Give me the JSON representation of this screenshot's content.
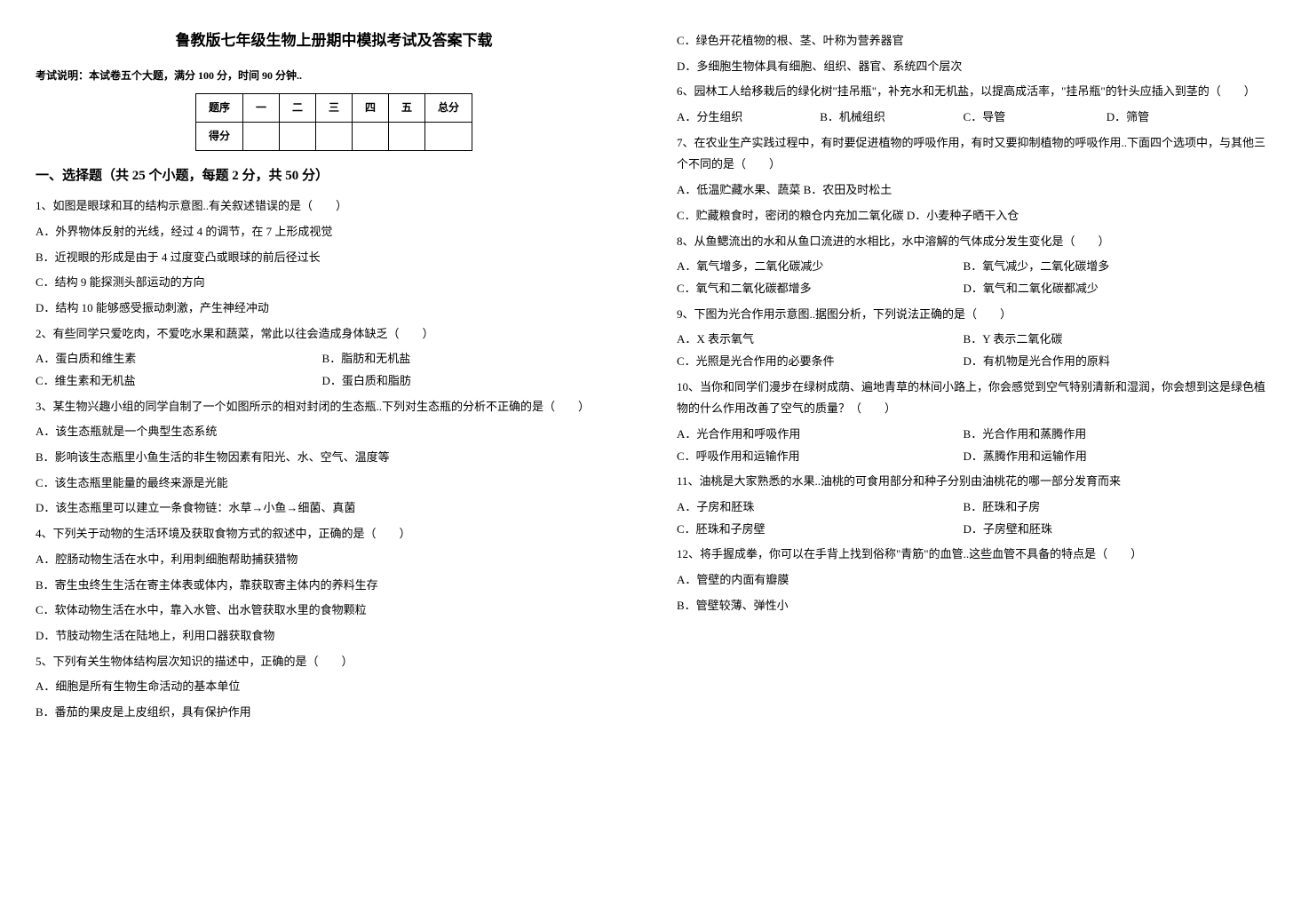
{
  "title": "鲁教版七年级生物上册期中模拟考试及答案下载",
  "exam_note": "考试说明：本试卷五个大题，满分 100 分，时间 90 分钟..",
  "score_table": {
    "headers": [
      "题序",
      "一",
      "二",
      "三",
      "四",
      "五",
      "总分"
    ],
    "row_label": "得分"
  },
  "section1_heading": "一、选择题（共 25 个小题，每题 2 分，共 50 分）",
  "left": {
    "q1": "1、如图是眼球和耳的结构示意图..有关叙述错误的是（　　）",
    "q1a": "A．外界物体反射的光线，经过 4 的调节，在 7 上形成视觉",
    "q1b": "B．近视眼的形成是由于 4 过度变凸或眼球的前后径过长",
    "q1c": "C．结构 9 能探测头部运动的方向",
    "q1d": "D．结构 10 能够感受振动刺激，产生神经冲动",
    "q2": "2、有些同学只爱吃肉，不爱吃水果和蔬菜，常此以往会造成身体缺乏（　　）",
    "q2a": "A．蛋白质和维生素",
    "q2b": "B．脂肪和无机盐",
    "q2c": "C．维生素和无机盐",
    "q2d": "D．蛋白质和脂肪",
    "q3": "3、某生物兴趣小组的同学自制了一个如图所示的相对封闭的生态瓶..下列对生态瓶的分析不正确的是（　　）",
    "q3a": "A．该生态瓶就是一个典型生态系统",
    "q3b": "B．影响该生态瓶里小鱼生活的非生物因素有阳光、水、空气、温度等",
    "q3c": "C．该生态瓶里能量的最终来源是光能",
    "q3d": "D．该生态瓶里可以建立一条食物链：水草→小鱼→细菌、真菌",
    "q4": "4、下列关于动物的生活环境及获取食物方式的叙述中，正确的是（　　）",
    "q4a": "A．腔肠动物生活在水中，利用刺细胞帮助捕获猎物",
    "q4b": "B．寄生虫终生生活在寄主体表或体内，靠获取寄主体内的养料生存",
    "q4c": "C．软体动物生活在水中，靠入水管、出水管获取水里的食物颗粒",
    "q4d": "D．节肢动物生活在陆地上，利用口器获取食物",
    "q5": "5、下列有关生物体结构层次知识的描述中，正确的是（　　）",
    "q5a": "A．细胞是所有生物生命活动的基本单位",
    "q5b": "B．番茄的果皮是上皮组织，具有保护作用"
  },
  "right": {
    "q5c": "C．绿色开花植物的根、茎、叶称为营养器官",
    "q5d": "D．多细胞生物体具有细胞、组织、器官、系统四个层次",
    "q6": "6、园林工人给移栽后的绿化树\"挂吊瓶\"，补充水和无机盐，以提高成活率，\"挂吊瓶\"的针头应插入到茎的（　　）",
    "q6a": "A．分生组织",
    "q6b": "B．机械组织",
    "q6c": "C．导管",
    "q6d": "D．筛管",
    "q7": "7、在农业生产实践过程中，有时要促进植物的呼吸作用，有时又要抑制植物的呼吸作用..下面四个选项中，与其他三个不同的是（　　）",
    "q7a": "A．低温贮藏水果、蔬菜 B．农田及时松土",
    "q7c": "C．贮藏粮食时，密闭的粮仓内充加二氧化碳 D．小麦种子晒干入仓",
    "q8": "8、从鱼鳃流出的水和从鱼口流进的水相比，水中溶解的气体成分发生变化是（　　）",
    "q8a": "A．氧气增多，二氧化碳减少",
    "q8b": "B．氧气减少，二氧化碳增多",
    "q8c": "C．氧气和二氧化碳都增多",
    "q8d": "D．氧气和二氧化碳都减少",
    "q9": "9、下图为光合作用示意图..据图分析，下列说法正确的是（　　）",
    "q9a": "A．X 表示氧气",
    "q9b": "B．Y 表示二氧化碳",
    "q9c": "C．光照是光合作用的必要条件",
    "q9d": "D．有机物是光合作用的原料",
    "q10": "10、当你和同学们漫步在绿树成荫、遍地青草的林间小路上，你会感觉到空气特别清新和湿润，你会想到这是绿色植物的什么作用改善了空气的质量？（　　）",
    "q10a": "A．光合作用和呼吸作用",
    "q10b": "B．光合作用和蒸腾作用",
    "q10c": "C．呼吸作用和运输作用",
    "q10d": "D．蒸腾作用和运输作用",
    "q11": "11、油桃是大家熟悉的水果..油桃的可食用部分和种子分别由油桃花的哪一部分发育而来",
    "q11a": "A．子房和胚珠",
    "q11b": "B．胚珠和子房",
    "q11c": "C．胚珠和子房壁",
    "q11d": "D．子房壁和胚珠",
    "q12": "12、将手握成拳，你可以在手背上找到俗称\"青筋\"的血管..这些血管不具备的特点是（　　）",
    "q12a": "A．管壁的内面有瓣膜",
    "q12b": "B．管壁较薄、弹性小"
  }
}
